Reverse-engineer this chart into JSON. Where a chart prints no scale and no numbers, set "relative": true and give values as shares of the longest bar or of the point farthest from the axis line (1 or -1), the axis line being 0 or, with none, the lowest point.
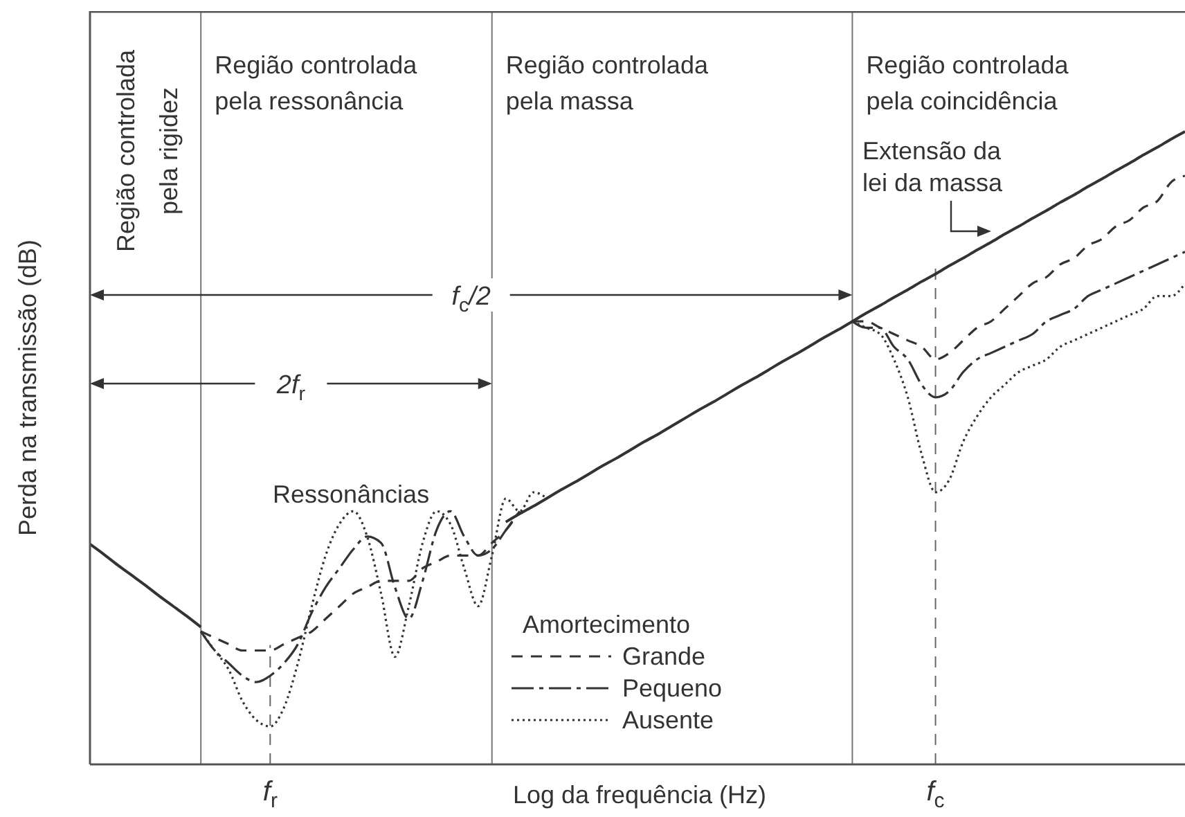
{
  "chart_data": {
    "type": "line",
    "relative": true,
    "xlabel": "Log da frequência (Hz)",
    "ylabel": "Perda na transmissão (dB)",
    "legend_title": "Amortecimento",
    "legend": "bottom",
    "tick_labels": "x",
    "categories": [
      null,
      null,
      null,
      null,
      null,
      null,
      null,
      null,
      null,
      null,
      null,
      null,
      null,
      "f$_{r}$",
      null,
      null,
      null,
      null,
      null,
      null,
      null,
      null,
      null,
      null,
      null,
      null,
      null,
      null,
      null,
      null,
      null,
      null,
      null,
      null,
      null,
      null,
      null,
      null,
      null,
      null,
      null,
      null,
      null,
      null,
      null,
      null,
      null,
      null,
      null,
      null,
      null,
      null,
      null,
      null,
      null,
      null,
      null,
      null,
      null,
      null,
      null,
      "f$_{c}$",
      null,
      null,
      null,
      null,
      null,
      null,
      null,
      null,
      null,
      null,
      null,
      null,
      null,
      null,
      null,
      null,
      null,
      null
    ],
    "series": [
      {
        "color": "#333333",
        "line_style": "solid",
        "values": [
          0.348,
          0.332,
          0.315,
          0.299,
          0.283,
          0.266,
          0.25,
          0.234,
          0.217,
          null,
          null,
          null,
          null,
          null,
          null,
          null,
          null,
          null,
          null,
          null,
          null,
          null,
          null,
          null,
          null,
          null,
          null,
          null,
          null,
          null,
          0.383,
          0.396,
          0.408,
          0.421,
          0.434,
          0.446,
          0.459,
          0.472,
          0.484,
          0.497,
          0.51,
          0.522,
          0.535,
          0.548,
          0.561,
          0.573,
          0.586,
          0.599,
          0.611,
          0.624,
          0.637,
          0.649,
          0.662,
          0.675,
          0.687,
          0.7,
          0.713,
          0.725,
          0.738,
          0.75,
          0.763,
          0.775,
          0.788,
          0.8,
          0.813,
          0.825,
          0.838,
          0.85,
          0.863,
          0.875,
          0.888,
          0.9,
          0.913,
          0.925,
          0.938,
          0.95,
          0.963,
          0.975,
          0.988,
          1.0
        ]
      },
      {
        "name": "Grande",
        "color": "#333333",
        "line_style": "dashed",
        "values": [
          null,
          null,
          null,
          null,
          null,
          null,
          null,
          null,
          0.21,
          0.2,
          0.19,
          0.18,
          0.18,
          0.18,
          0.19,
          0.2,
          0.21,
          0.23,
          0.25,
          0.27,
          0.28,
          0.29,
          0.29,
          0.29,
          0.31,
          0.32,
          0.33,
          0.33,
          0.33,
          0.35,
          0.37,
          0.4,
          null,
          null,
          null,
          null,
          null,
          null,
          null,
          null,
          null,
          null,
          null,
          null,
          null,
          null,
          null,
          null,
          null,
          null,
          null,
          null,
          null,
          null,
          null,
          0.7,
          0.7,
          0.69,
          0.68,
          0.67,
          0.66,
          0.64,
          0.65,
          0.67,
          0.69,
          0.7,
          0.72,
          0.74,
          0.76,
          0.77,
          0.79,
          0.8,
          0.82,
          0.83,
          0.85,
          0.86,
          0.88,
          0.89,
          0.92,
          0.93
        ]
      },
      {
        "name": "Pequeno",
        "color": "#333333",
        "line_style": "dashdot",
        "values": [
          null,
          null,
          null,
          null,
          null,
          null,
          null,
          null,
          0.21,
          0.18,
          0.16,
          0.14,
          0.13,
          0.14,
          0.16,
          0.19,
          0.24,
          0.28,
          0.31,
          0.34,
          0.36,
          0.35,
          0.28,
          0.23,
          0.29,
          0.37,
          0.4,
          0.36,
          0.33,
          0.34,
          0.37,
          0.4,
          null,
          null,
          null,
          null,
          null,
          null,
          null,
          null,
          null,
          null,
          null,
          null,
          null,
          null,
          null,
          null,
          null,
          null,
          null,
          null,
          null,
          null,
          null,
          0.7,
          0.69,
          0.69,
          0.66,
          0.64,
          0.6,
          0.58,
          0.59,
          0.62,
          0.64,
          0.65,
          0.66,
          0.67,
          0.68,
          0.7,
          0.71,
          0.72,
          0.74,
          0.75,
          0.76,
          0.77,
          0.78,
          0.79,
          0.8,
          0.81
        ]
      },
      {
        "name": "Ausente",
        "color": "#333333",
        "line_style": "dotted",
        "values": [
          null,
          null,
          null,
          null,
          null,
          null,
          null,
          null,
          0.21,
          0.18,
          0.15,
          0.1,
          0.07,
          0.06,
          0.09,
          0.16,
          0.25,
          0.33,
          0.38,
          0.4,
          0.36,
          0.27,
          0.17,
          0.25,
          0.35,
          0.4,
          0.38,
          0.31,
          0.25,
          0.33,
          0.42,
          0.4,
          0.43,
          0.42,
          null,
          null,
          null,
          null,
          null,
          null,
          null,
          null,
          null,
          null,
          null,
          null,
          null,
          null,
          null,
          null,
          null,
          null,
          null,
          null,
          null,
          0.7,
          0.69,
          0.68,
          0.64,
          0.58,
          0.49,
          0.43,
          0.45,
          0.51,
          0.55,
          0.58,
          0.6,
          0.62,
          0.63,
          0.64,
          0.66,
          0.67,
          0.68,
          0.69,
          0.7,
          0.71,
          0.72,
          0.74,
          0.74,
          0.76
        ]
      }
    ],
    "ref_lines": [
      {
        "axis": "x",
        "value": "f$_{r}$",
        "line_style": "dashed"
      },
      {
        "axis": "x",
        "value": "f$_{c}$",
        "line_style": "dashed"
      }
    ],
    "annotations": [
      "Região controlada pela rigidez",
      "Região controlada pela ressonância",
      "Região controlada pela massa",
      "Região controlada pela coincidência",
      "f$_{c}$/2",
      "2f$_{r}$",
      "Ressonâncias",
      "Extensão da lei da massa"
    ]
  }
}
